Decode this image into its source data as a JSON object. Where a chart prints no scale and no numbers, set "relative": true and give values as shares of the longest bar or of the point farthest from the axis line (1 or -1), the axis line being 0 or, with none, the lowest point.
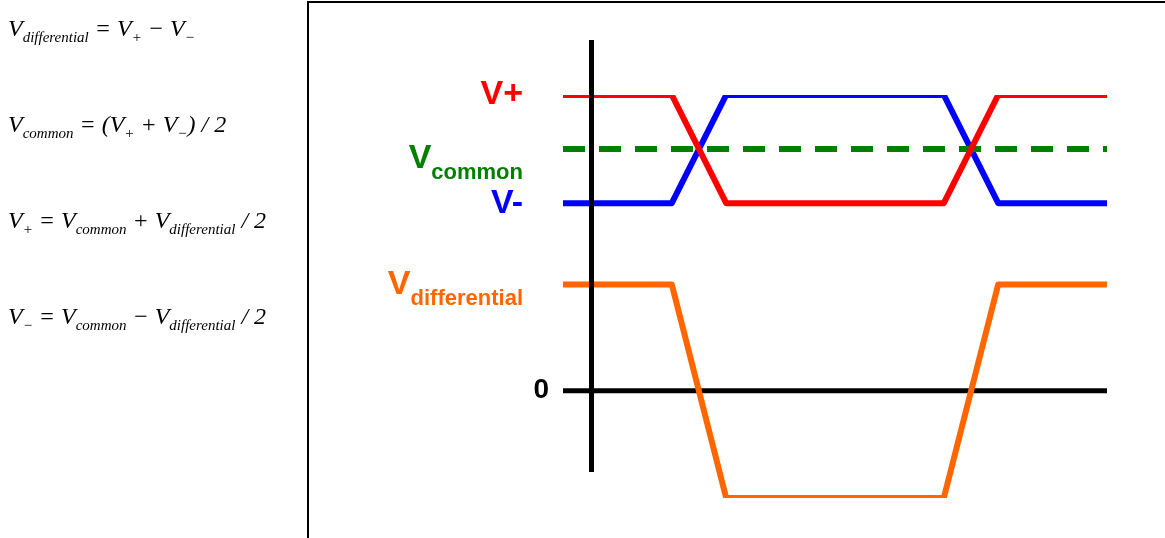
{
  "chart_data": {
    "type": "line",
    "relative": true,
    "categories": [
      null,
      null,
      null,
      null,
      null,
      null,
      null,
      null,
      null,
      null,
      null
    ],
    "series": [
      {
        "name": "V+",
        "color": "#ff0000",
        "values": [
          1,
          1,
          1,
          0.634,
          0.634,
          0.634,
          0.634,
          0.634,
          1,
          1,
          1
        ]
      },
      {
        "name": "V$_{common}$",
        "color": "#008000",
        "line_style": "dashed",
        "values": [
          0.817,
          0.817,
          0.817,
          0.817,
          0.817,
          0.817,
          0.817,
          0.817,
          0.817,
          0.817,
          0.817
        ]
      },
      {
        "name": "V-",
        "color": "#0000ff",
        "values": [
          0.634,
          0.634,
          0.634,
          1,
          1,
          1,
          1,
          1,
          0.634,
          0.634,
          0.634
        ]
      },
      {
        "name": "V$_{differential}$",
        "color": "#ff6600",
        "values": [
          0.359,
          0.359,
          0.359,
          -0.363,
          -0.363,
          -0.363,
          -0.363,
          -0.363,
          0.359,
          0.359,
          0.359
        ]
      }
    ],
    "ref_lines": [
      {
        "axis": "y",
        "value": 0,
        "label": "0",
        "color": "#000000"
      }
    ],
    "annotations": [
      "V$_{differential}$ = V$_{+}$ − V$_{−}$",
      "V$_{common}$ = (V$_{+}$ + V$_{−}$) / 2",
      "V$_{+}$ = V$_{common}$ + V$_{differential}$ / 2",
      "V$_{−}$ = V$_{common}$ − V$_{differential}$ / 2"
    ],
    "legend": false,
    "marker": "none"
  }
}
